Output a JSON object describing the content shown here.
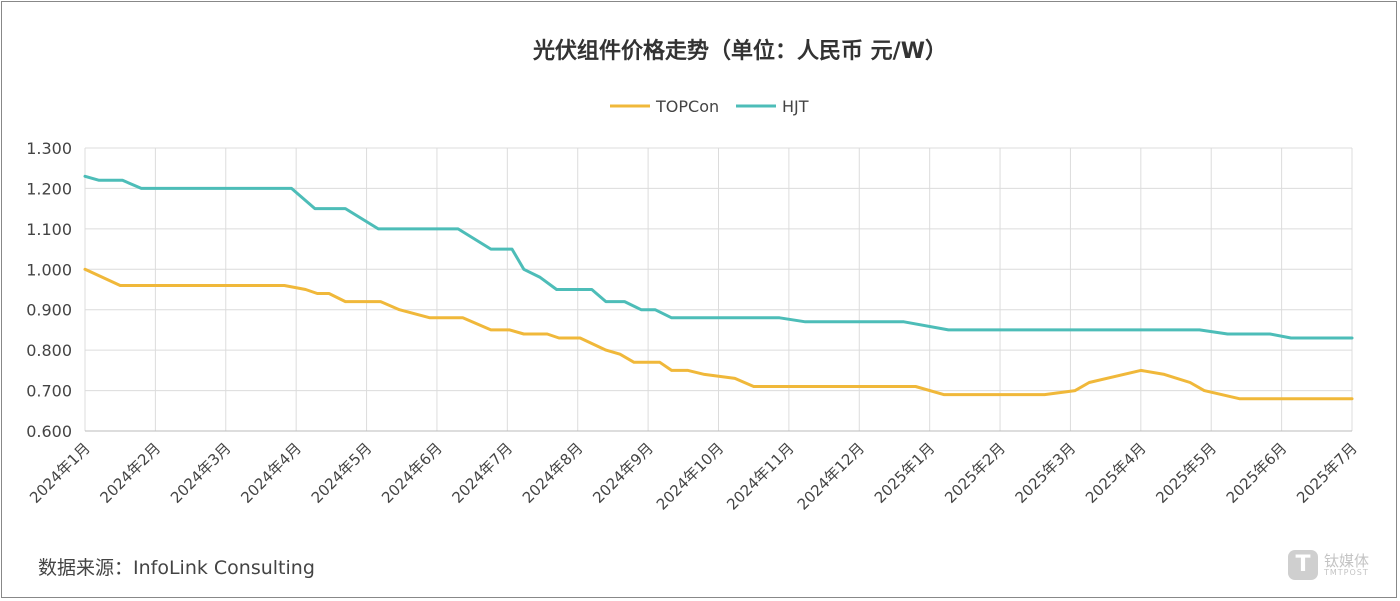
{
  "chart_data": {
    "type": "line",
    "title": "光伏组件价格走势（单位：人民币 元/W）",
    "xlabel": "",
    "ylabel": "",
    "ylim": [
      0.6,
      1.3
    ],
    "yticks": [
      "1.300",
      "1.200",
      "1.100",
      "1.000",
      "0.900",
      "0.800",
      "0.700",
      "0.600"
    ],
    "categories": [
      "2024年1月",
      "2024年2月",
      "2024年3月",
      "2024年4月",
      "2024年5月",
      "2024年6月",
      "2024年7月",
      "2024年8月",
      "2024年9月",
      "2024年10月",
      "2024年11月",
      "2024年12月",
      "2025年1月",
      "2025年2月",
      "2025年3月",
      "2025年4月",
      "2025年5月",
      "2025年6月",
      "2025年7月"
    ],
    "grid": true,
    "legend": "top-center",
    "series": [
      {
        "name": "TOPCon",
        "color": "#f0b83a",
        "points": [
          [
            "2024-01-01",
            1.0
          ],
          [
            "2024-01-16",
            0.96
          ],
          [
            "2024-03-26",
            0.96
          ],
          [
            "2024-04-05",
            0.95
          ],
          [
            "2024-04-10",
            0.94
          ],
          [
            "2024-04-15",
            0.94
          ],
          [
            "2024-04-22",
            0.92
          ],
          [
            "2024-05-07",
            0.92
          ],
          [
            "2024-05-15",
            0.9
          ],
          [
            "2024-05-28",
            0.88
          ],
          [
            "2024-06-12",
            0.88
          ],
          [
            "2024-06-24",
            0.85
          ],
          [
            "2024-07-02",
            0.85
          ],
          [
            "2024-07-08",
            0.84
          ],
          [
            "2024-07-18",
            0.84
          ],
          [
            "2024-07-23",
            0.83
          ],
          [
            "2024-08-02",
            0.83
          ],
          [
            "2024-08-13",
            0.8
          ],
          [
            "2024-08-19",
            0.79
          ],
          [
            "2024-08-25",
            0.77
          ],
          [
            "2024-09-06",
            0.77
          ],
          [
            "2024-09-11",
            0.75
          ],
          [
            "2024-09-18",
            0.75
          ],
          [
            "2024-09-25",
            0.74
          ],
          [
            "2024-10-08",
            0.73
          ],
          [
            "2024-10-16",
            0.71
          ],
          [
            "2024-12-25",
            0.71
          ],
          [
            "2025-01-07",
            0.69
          ],
          [
            "2025-02-20",
            0.69
          ],
          [
            "2025-03-03",
            0.7
          ],
          [
            "2025-03-09",
            0.72
          ],
          [
            "2025-03-31",
            0.75
          ],
          [
            "2025-04-11",
            0.74
          ],
          [
            "2025-04-22",
            0.72
          ],
          [
            "2025-04-28",
            0.7
          ],
          [
            "2025-05-13",
            0.68
          ],
          [
            "2025-07-01",
            0.68
          ]
        ]
      },
      {
        "name": "HJT",
        "color": "#4dbdb8",
        "points": [
          [
            "2024-01-01",
            1.23
          ],
          [
            "2024-01-07",
            1.22
          ],
          [
            "2024-01-17",
            1.22
          ],
          [
            "2024-01-25",
            1.2
          ],
          [
            "2024-03-29",
            1.2
          ],
          [
            "2024-04-09",
            1.15
          ],
          [
            "2024-04-22",
            1.15
          ],
          [
            "2024-05-06",
            1.1
          ],
          [
            "2024-06-10",
            1.1
          ],
          [
            "2024-06-24",
            1.05
          ],
          [
            "2024-07-03",
            1.05
          ],
          [
            "2024-07-08",
            1.0
          ],
          [
            "2024-07-15",
            0.98
          ],
          [
            "2024-07-22",
            0.95
          ],
          [
            "2024-08-07",
            0.95
          ],
          [
            "2024-08-13",
            0.92
          ],
          [
            "2024-08-21",
            0.92
          ],
          [
            "2024-08-28",
            0.9
          ],
          [
            "2024-09-04",
            0.9
          ],
          [
            "2024-09-11",
            0.88
          ],
          [
            "2024-10-27",
            0.88
          ],
          [
            "2024-11-08",
            0.87
          ],
          [
            "2024-12-20",
            0.87
          ],
          [
            "2025-01-09",
            0.85
          ],
          [
            "2025-04-26",
            0.85
          ],
          [
            "2025-05-08",
            0.84
          ],
          [
            "2025-05-26",
            0.84
          ],
          [
            "2025-06-05",
            0.83
          ],
          [
            "2025-07-01",
            0.83
          ]
        ]
      }
    ]
  },
  "footer": {
    "source": "数据来源：InfoLink Consulting"
  },
  "watermark": {
    "cn": "钛媒体",
    "en": "TMTPOST",
    "logo": "T"
  }
}
